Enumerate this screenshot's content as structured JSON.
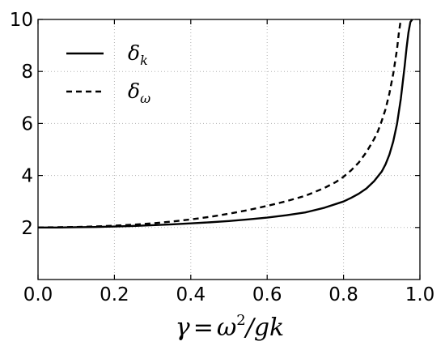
{
  "chart_data": {
    "type": "line",
    "xlabel": "γ = ω²/gk",
    "xlabel_parts": {
      "lhs": "γ",
      "eq": "=",
      "omega": "ω",
      "sup": "2",
      "rest": "/gk"
    },
    "ylabel": "",
    "xlim": [
      0.0,
      1.0
    ],
    "ylim": [
      0,
      10
    ],
    "x_ticks": [
      "0.0",
      "0.2",
      "0.4",
      "0.6",
      "0.8",
      "1.0"
    ],
    "y_ticks": [
      "2",
      "4",
      "6",
      "8",
      "10"
    ],
    "grid": true,
    "legend_position": "upper-left",
    "series": [
      {
        "name": "δ_k",
        "symbol": "δ",
        "subscript": "k",
        "style": "solid",
        "color": "#000000",
        "x": [
          0.0,
          0.05,
          0.1,
          0.15,
          0.2,
          0.25,
          0.3,
          0.35,
          0.4,
          0.45,
          0.5,
          0.55,
          0.6,
          0.65,
          0.7,
          0.75,
          0.8,
          0.82,
          0.84,
          0.86,
          0.88,
          0.9,
          0.91,
          0.92,
          0.93,
          0.94,
          0.95,
          0.96,
          0.965,
          0.97,
          0.975,
          0.98
        ],
        "values": [
          2.0,
          2.0,
          2.01,
          2.02,
          2.04,
          2.06,
          2.09,
          2.12,
          2.16,
          2.2,
          2.25,
          2.31,
          2.38,
          2.47,
          2.58,
          2.76,
          3.0,
          3.14,
          3.3,
          3.5,
          3.78,
          4.15,
          4.43,
          4.8,
          5.3,
          5.98,
          6.95,
          8.2,
          8.9,
          9.5,
          9.9,
          10.0
        ]
      },
      {
        "name": "δ_ω",
        "symbol": "δ",
        "subscript": "ω",
        "style": "dashed",
        "color": "#000000",
        "x": [
          0.0,
          0.05,
          0.1,
          0.15,
          0.2,
          0.25,
          0.3,
          0.35,
          0.4,
          0.45,
          0.5,
          0.55,
          0.6,
          0.65,
          0.7,
          0.75,
          0.78,
          0.8,
          0.82,
          0.84,
          0.86,
          0.88,
          0.89,
          0.9,
          0.91,
          0.92,
          0.93,
          0.94,
          0.945,
          0.95
        ],
        "values": [
          2.0,
          2.01,
          2.02,
          2.04,
          2.07,
          2.11,
          2.16,
          2.23,
          2.31,
          2.41,
          2.53,
          2.67,
          2.83,
          3.01,
          3.22,
          3.52,
          3.75,
          3.95,
          4.2,
          4.5,
          4.9,
          5.4,
          5.7,
          6.1,
          6.55,
          7.15,
          7.9,
          8.85,
          9.5,
          10.0
        ]
      }
    ]
  }
}
